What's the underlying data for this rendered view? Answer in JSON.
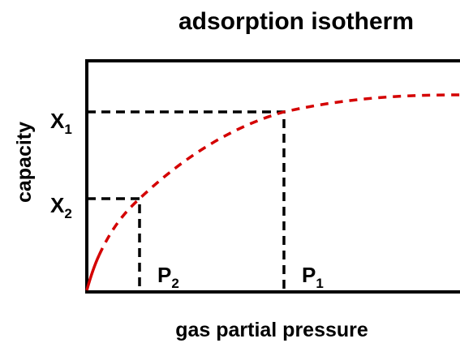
{
  "title": "adsorption isotherm",
  "x_axis_label": "gas partial pressure",
  "y_axis_label": "capacity",
  "points": [
    {
      "x_label": {
        "main": "P",
        "sub": "1"
      },
      "y_label": {
        "main": "X",
        "sub": "1"
      }
    },
    {
      "x_label": {
        "main": "P",
        "sub": "2"
      },
      "y_label": {
        "main": "X",
        "sub": "2"
      }
    }
  ]
}
